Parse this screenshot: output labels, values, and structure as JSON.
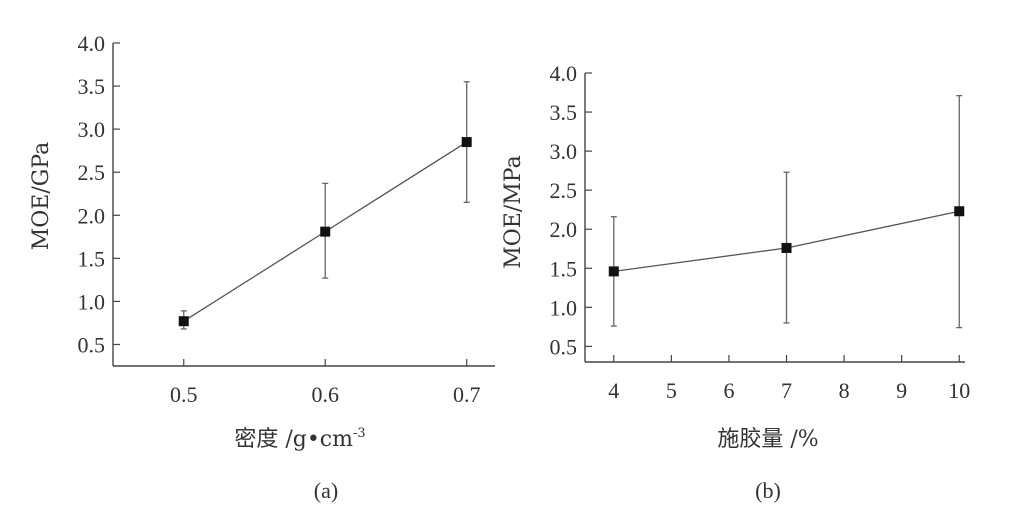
{
  "chart_data": [
    {
      "type": "line",
      "panel_label": "(a)",
      "xlabel": "密度 /g•cm",
      "xlabel_sup": "-3",
      "ylabel": "MOE/GPa",
      "xlim": [
        0.45,
        0.72
      ],
      "ylim": [
        0.25,
        4.0
      ],
      "x_ticks": [
        0.5,
        0.6,
        0.7
      ],
      "x_tick_labels": [
        "0.5",
        "0.6",
        "0.7"
      ],
      "y_ticks": [
        0.5,
        1.0,
        1.5,
        2.0,
        2.5,
        3.0,
        3.5,
        4.0
      ],
      "y_tick_labels": [
        "0.5",
        "1.0",
        "1.5",
        "2.0",
        "2.5",
        "3.0",
        "3.5",
        "4.0"
      ],
      "series": [
        {
          "x": [
            0.5,
            0.6,
            0.7
          ],
          "y": [
            0.77,
            1.81,
            2.85
          ],
          "err_low": [
            0.68,
            1.27,
            2.15
          ],
          "err_high": [
            0.89,
            2.37,
            3.55
          ]
        }
      ]
    },
    {
      "type": "line",
      "panel_label": "(b)",
      "xlabel": "施胶量 /%",
      "ylabel": "MOE/MPa",
      "xlim": [
        3.5,
        10.1
      ],
      "ylim": [
        0.3,
        4.0
      ],
      "x_ticks": [
        4,
        5,
        6,
        7,
        8,
        9,
        10
      ],
      "x_tick_labels": [
        "4",
        "5",
        "6",
        "7",
        "8",
        "9",
        "10"
      ],
      "y_ticks": [
        0.5,
        1.0,
        1.5,
        2.0,
        2.5,
        3.0,
        3.5,
        4.0
      ],
      "y_tick_labels": [
        "0.5",
        "1.0",
        "1.5",
        "2.0",
        "2.5",
        "3.0",
        "3.5",
        "4.0"
      ],
      "series": [
        {
          "x": [
            4,
            7,
            10
          ],
          "y": [
            1.46,
            1.76,
            2.23
          ],
          "err_low": [
            0.76,
            0.8,
            0.74
          ],
          "err_high": [
            2.16,
            2.73,
            3.71
          ]
        }
      ]
    }
  ]
}
